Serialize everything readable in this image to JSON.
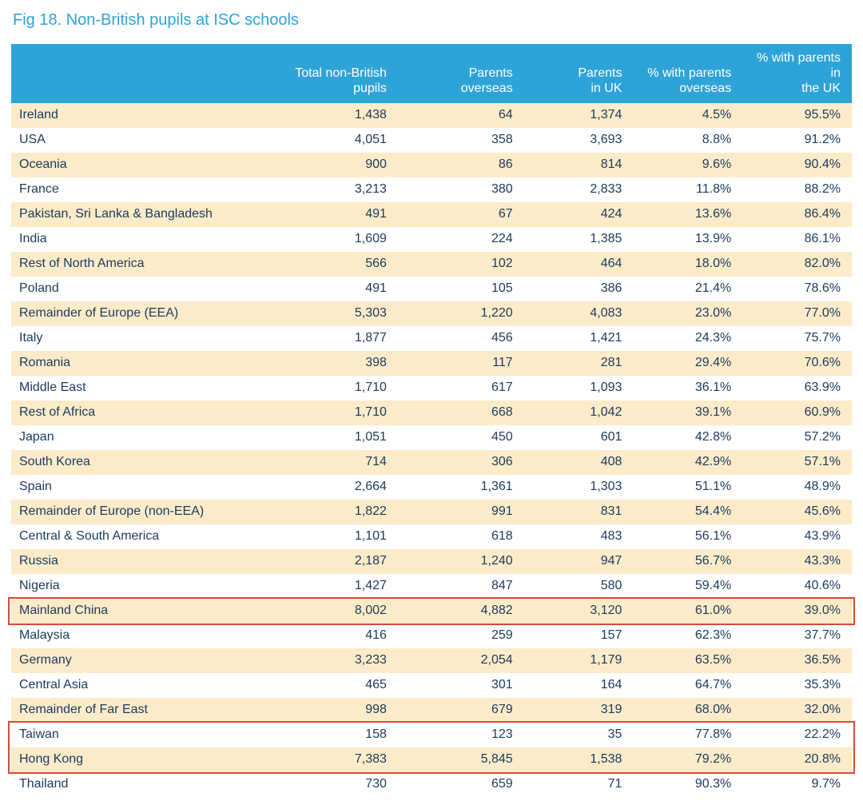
{
  "title": "Fig 18. Non-British pupils at ISC schools",
  "colors": {
    "header_bg": "#2ea3d8",
    "header_fg": "#ffffff",
    "row_odd_bg": "#fcebc9",
    "row_even_bg": "#ffffff",
    "text": "#1b3a5c",
    "highlight_border": "#d64a3a"
  },
  "table": {
    "type": "table",
    "column_widths_pct": [
      28,
      18,
      15,
      13,
      13,
      13
    ],
    "columns": [
      "",
      "Total non-British pupils",
      "Parents overseas",
      "Parents in UK",
      "% with parents overseas",
      "% with parents in the UK"
    ],
    "rows": [
      [
        "Ireland",
        "1,438",
        "64",
        "1,374",
        "4.5%",
        "95.5%"
      ],
      [
        "USA",
        "4,051",
        "358",
        "3,693",
        "8.8%",
        "91.2%"
      ],
      [
        "Oceania",
        "900",
        "86",
        "814",
        "9.6%",
        "90.4%"
      ],
      [
        "France",
        "3,213",
        "380",
        "2,833",
        "11.8%",
        "88.2%"
      ],
      [
        "Pakistan, Sri Lanka & Bangladesh",
        "491",
        "67",
        "424",
        "13.6%",
        "86.4%"
      ],
      [
        "India",
        "1,609",
        "224",
        "1,385",
        "13.9%",
        "86.1%"
      ],
      [
        "Rest of North America",
        "566",
        "102",
        "464",
        "18.0%",
        "82.0%"
      ],
      [
        "Poland",
        "491",
        "105",
        "386",
        "21.4%",
        "78.6%"
      ],
      [
        "Remainder of Europe (EEA)",
        "5,303",
        "1,220",
        "4,083",
        "23.0%",
        "77.0%"
      ],
      [
        "Italy",
        "1,877",
        "456",
        "1,421",
        "24.3%",
        "75.7%"
      ],
      [
        "Romania",
        "398",
        "117",
        "281",
        "29.4%",
        "70.6%"
      ],
      [
        "Middle East",
        "1,710",
        "617",
        "1,093",
        "36.1%",
        "63.9%"
      ],
      [
        "Rest of Africa",
        "1,710",
        "668",
        "1,042",
        "39.1%",
        "60.9%"
      ],
      [
        "Japan",
        "1,051",
        "450",
        "601",
        "42.8%",
        "57.2%"
      ],
      [
        "South Korea",
        "714",
        "306",
        "408",
        "42.9%",
        "57.1%"
      ],
      [
        "Spain",
        "2,664",
        "1,361",
        "1,303",
        "51.1%",
        "48.9%"
      ],
      [
        "Remainder of Europe (non-EEA)",
        "1,822",
        "991",
        "831",
        "54.4%",
        "45.6%"
      ],
      [
        "Central & South America",
        "1,101",
        "618",
        "483",
        "56.1%",
        "43.9%"
      ],
      [
        "Russia",
        "2,187",
        "1,240",
        "947",
        "56.7%",
        "43.3%"
      ],
      [
        "Nigeria",
        "1,427",
        "847",
        "580",
        "59.4%",
        "40.6%"
      ],
      [
        "Mainland China",
        "8,002",
        "4,882",
        "3,120",
        "61.0%",
        "39.0%"
      ],
      [
        "Malaysia",
        "416",
        "259",
        "157",
        "62.3%",
        "37.7%"
      ],
      [
        "Germany",
        "3,233",
        "2,054",
        "1,179",
        "63.5%",
        "36.5%"
      ],
      [
        "Central Asia",
        "465",
        "301",
        "164",
        "64.7%",
        "35.3%"
      ],
      [
        "Remainder of Far East",
        "998",
        "679",
        "319",
        "68.0%",
        "32.0%"
      ],
      [
        "Taiwan",
        "158",
        "123",
        "35",
        "77.8%",
        "22.2%"
      ],
      [
        "Hong Kong",
        "7,383",
        "5,845",
        "1,538",
        "79.2%",
        "20.8%"
      ],
      [
        "Thailand",
        "730",
        "659",
        "71",
        "90.3%",
        "9.7%"
      ]
    ],
    "highlight_boxes": [
      {
        "row_start": 20,
        "row_end": 20
      },
      {
        "row_start": 25,
        "row_end": 26
      }
    ]
  }
}
